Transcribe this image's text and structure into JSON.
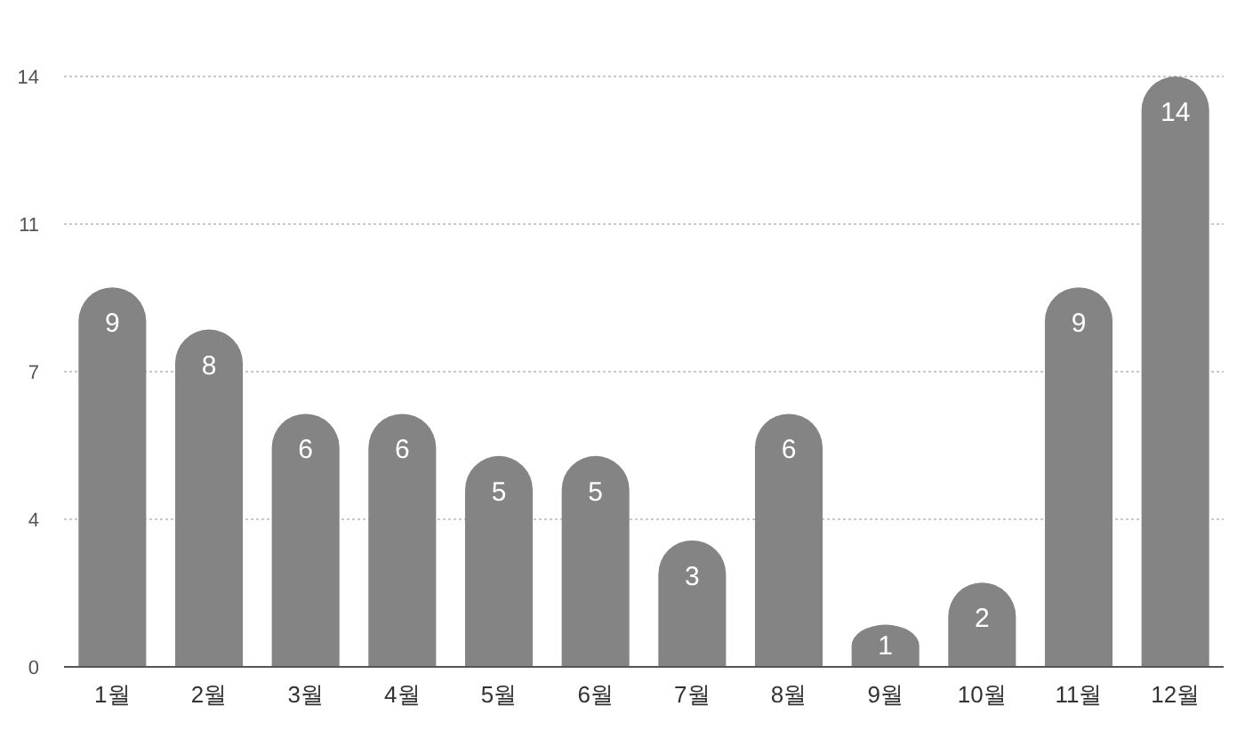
{
  "chart_data": {
    "type": "bar",
    "categories": [
      "1월",
      "2월",
      "3월",
      "4월",
      "5월",
      "6월",
      "7월",
      "8월",
      "9월",
      "10월",
      "11월",
      "12월"
    ],
    "values": [
      9,
      8,
      6,
      6,
      5,
      5,
      3,
      6,
      1,
      2,
      9,
      14
    ],
    "color": "#848484",
    "ylim": [
      0,
      14
    ],
    "yticks": [
      0,
      {
        "value": 3.5,
        "label": "4"
      },
      7,
      {
        "value": 10.5,
        "label": "11"
      },
      14
    ],
    "grid": "y",
    "data_labels": true
  }
}
